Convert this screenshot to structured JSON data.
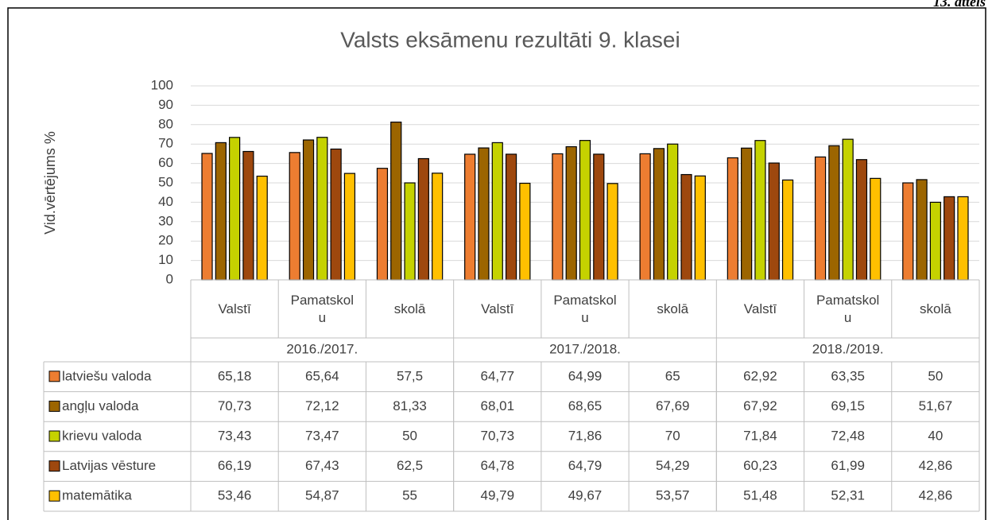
{
  "figure_label": "13. attēls",
  "chart_data": {
    "type": "bar",
    "title": "Valsts eksāmenu rezultāti 9. klasei",
    "y_label": "Vid.vērtējums %",
    "categories": [
      "Valstī",
      "Pamatskolu",
      "skolā",
      "Valstī",
      "Pamatskolu",
      "skolā",
      "Valstī",
      "Pamatskolu",
      "skolā"
    ],
    "groups": [
      "2016./2017.",
      "2017./2018.",
      "2018./2019."
    ],
    "ylim": [
      0,
      100
    ],
    "yticks": [
      0,
      10,
      20,
      30,
      40,
      50,
      60,
      70,
      80,
      90,
      100
    ],
    "grid": true,
    "series": [
      {
        "name": "latviešu valoda",
        "color": "#ed7d31",
        "values": [
          65.18,
          65.64,
          57.5,
          64.77,
          64.99,
          65,
          62.92,
          63.35,
          50
        ],
        "value_labels": [
          "65,18",
          "65,64",
          "57,5",
          "64,77",
          "64,99",
          "65",
          "62,92",
          "63,35",
          "50"
        ]
      },
      {
        "name": "angļu valoda",
        "color": "#9c6500",
        "values": [
          70.73,
          72.12,
          81.33,
          68.01,
          68.65,
          67.69,
          67.92,
          69.15,
          51.67
        ],
        "value_labels": [
          "70,73",
          "72,12",
          "81,33",
          "68,01",
          "68,65",
          "67,69",
          "67,92",
          "69,15",
          "51,67"
        ]
      },
      {
        "name": "krievu valoda",
        "color": "#c5d200",
        "values": [
          73.43,
          73.47,
          50,
          70.73,
          71.86,
          70,
          71.84,
          72.48,
          40
        ],
        "value_labels": [
          "73,43",
          "73,47",
          "50",
          "70,73",
          "71,86",
          "70",
          "71,84",
          "72,48",
          "40"
        ]
      },
      {
        "name": "Latvijas vēsture",
        "color": "#9e480e",
        "values": [
          66.19,
          67.43,
          62.5,
          64.78,
          64.79,
          54.29,
          60.23,
          61.99,
          42.86
        ],
        "value_labels": [
          "66,19",
          "67,43",
          "62,5",
          "64,78",
          "64,79",
          "54,29",
          "60,23",
          "61,99",
          "42,86"
        ]
      },
      {
        "name": "matemātika",
        "color": "#ffc000",
        "values": [
          53.46,
          54.87,
          55,
          49.79,
          49.67,
          53.57,
          51.48,
          52.31,
          42.86
        ],
        "value_labels": [
          "53,46",
          "54,87",
          "55",
          "49,79",
          "49,67",
          "53,57",
          "51,48",
          "52,31",
          "42,86"
        ]
      }
    ]
  }
}
